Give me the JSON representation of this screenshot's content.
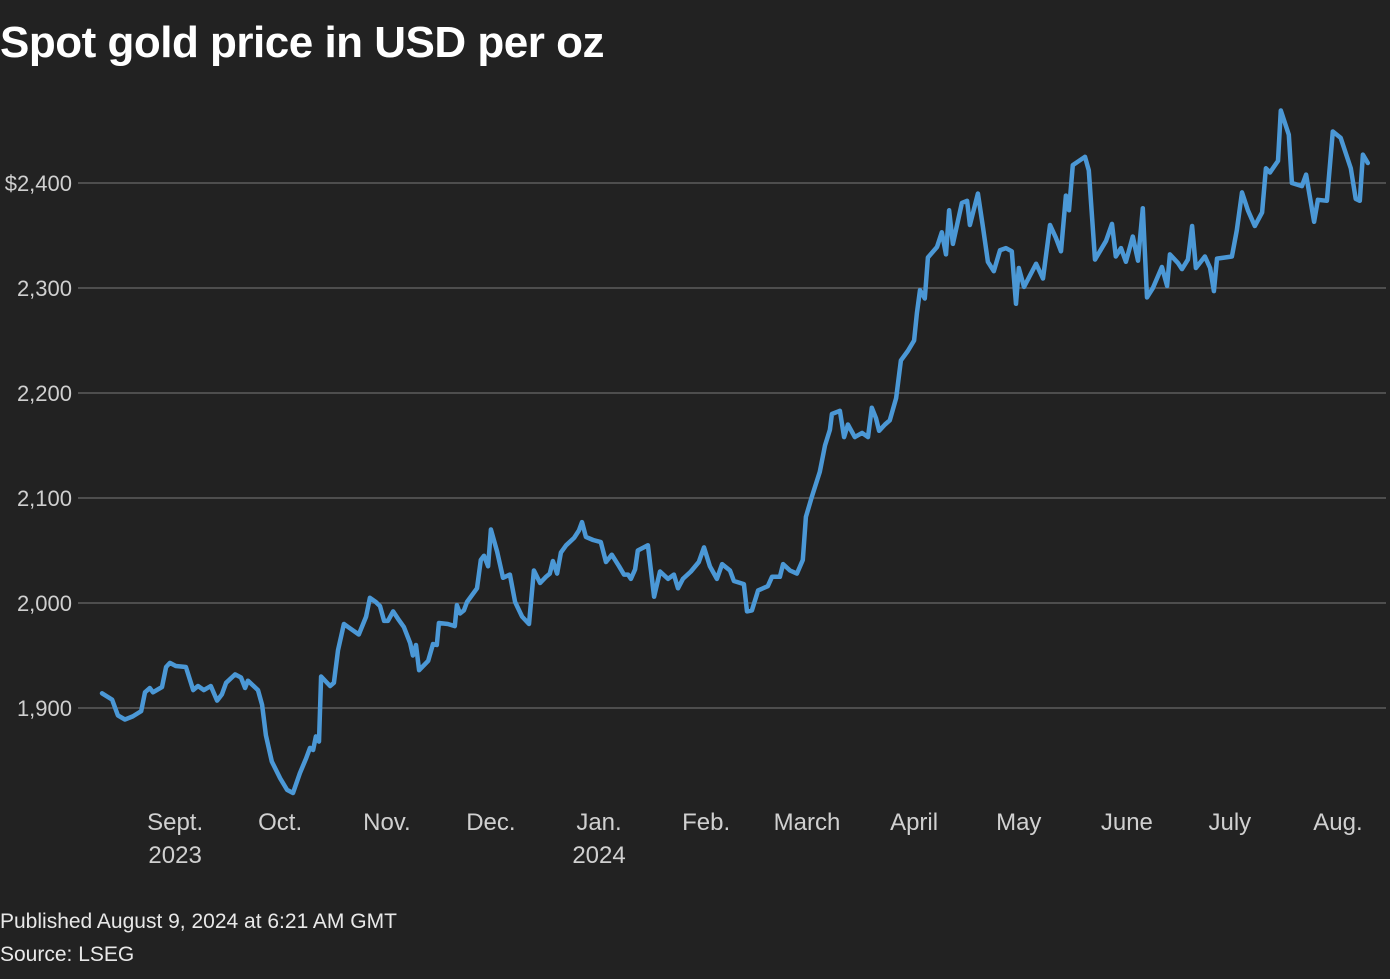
{
  "title": "Spot gold price in USD per oz",
  "footer": {
    "published": "Published August 9, 2024 at 6:21 AM GMT",
    "source": "Source: LSEG"
  },
  "colors": {
    "background": "#222222",
    "line": "#4b98d6",
    "grid": "#6a6a6a",
    "text": "#d0d0d0"
  },
  "chart_data": {
    "type": "line",
    "title": "Spot gold price in USD per oz",
    "xlabel": "",
    "ylabel": "",
    "x_unit": "days since start (approx. Aug 9, 2023)",
    "xlim": [
      0,
      365.2
    ],
    "ylim": [
      1800,
      2480
    ],
    "grid": true,
    "y_ticks": [
      {
        "value": 1900,
        "label": "1,900"
      },
      {
        "value": 2000,
        "label": "2,000"
      },
      {
        "value": 2100,
        "label": "2,100"
      },
      {
        "value": 2200,
        "label": "2,200"
      },
      {
        "value": 2300,
        "label": "2,300"
      },
      {
        "value": 2400,
        "label": "$2,400"
      }
    ],
    "x_ticks": [
      {
        "day": 21.1,
        "label": "Sept.",
        "year": "2023"
      },
      {
        "day": 51.4,
        "label": "Oct."
      },
      {
        "day": 82.2,
        "label": "Nov."
      },
      {
        "day": 112.2,
        "label": "Dec."
      },
      {
        "day": 143.4,
        "label": "Jan.",
        "year": "2024"
      },
      {
        "day": 174.3,
        "label": "Feb."
      },
      {
        "day": 203.4,
        "label": "March"
      },
      {
        "day": 234.3,
        "label": "April"
      },
      {
        "day": 264.5,
        "label": "May"
      },
      {
        "day": 295.7,
        "label": "June"
      },
      {
        "day": 325.4,
        "label": "July"
      },
      {
        "day": 356.6,
        "label": "Aug."
      }
    ],
    "series": [
      {
        "name": "Spot gold",
        "points": [
          [
            0,
            1914
          ],
          [
            2.9,
            1908
          ],
          [
            4.6,
            1893
          ],
          [
            6.6,
            1889
          ],
          [
            8.9,
            1892
          ],
          [
            11.3,
            1897
          ],
          [
            12.4,
            1915
          ],
          [
            13.8,
            1919
          ],
          [
            14.7,
            1915
          ],
          [
            17.3,
            1920
          ],
          [
            18.5,
            1939
          ],
          [
            19.6,
            1943
          ],
          [
            21.3,
            1940
          ],
          [
            24.2,
            1939
          ],
          [
            26.3,
            1917
          ],
          [
            27.7,
            1921
          ],
          [
            29.4,
            1917
          ],
          [
            31.4,
            1921
          ],
          [
            33.2,
            1907
          ],
          [
            34.6,
            1913
          ],
          [
            35.8,
            1924
          ],
          [
            38.4,
            1932
          ],
          [
            40.1,
            1929
          ],
          [
            41.3,
            1919
          ],
          [
            42.1,
            1926
          ],
          [
            45.0,
            1917
          ],
          [
            46.2,
            1903
          ],
          [
            47.3,
            1874
          ],
          [
            49.0,
            1849
          ],
          [
            51.4,
            1833
          ],
          [
            53.4,
            1822
          ],
          [
            55.1,
            1819
          ],
          [
            57.1,
            1838
          ],
          [
            58.9,
            1852
          ],
          [
            60.0,
            1862
          ],
          [
            60.9,
            1860
          ],
          [
            61.7,
            1873
          ],
          [
            62.6,
            1868
          ],
          [
            63.2,
            1930
          ],
          [
            65.8,
            1921
          ],
          [
            66.9,
            1924
          ],
          [
            68.1,
            1955
          ],
          [
            69.8,
            1980
          ],
          [
            71.5,
            1976
          ],
          [
            74.1,
            1970
          ],
          [
            76.2,
            1987
          ],
          [
            77.3,
            2005
          ],
          [
            79.0,
            2001
          ],
          [
            80.2,
            1997
          ],
          [
            81.4,
            1983
          ],
          [
            82.5,
            1983
          ],
          [
            84.0,
            1992
          ],
          [
            85.4,
            1985
          ],
          [
            87.1,
            1977
          ],
          [
            88.9,
            1962
          ],
          [
            89.7,
            1950
          ],
          [
            90.6,
            1960
          ],
          [
            91.5,
            1936
          ],
          [
            94.1,
            1945
          ],
          [
            95.5,
            1961
          ],
          [
            96.6,
            1960
          ],
          [
            97.2,
            1981
          ],
          [
            99.8,
            1980
          ],
          [
            101.8,
            1978
          ],
          [
            102.4,
            1998
          ],
          [
            103.3,
            1990
          ],
          [
            104.4,
            1993
          ],
          [
            105.3,
            2001
          ],
          [
            108.2,
            2014
          ],
          [
            109.3,
            2041
          ],
          [
            110.2,
            2045
          ],
          [
            111.4,
            2035
          ],
          [
            112.2,
            2070
          ],
          [
            114.0,
            2049
          ],
          [
            115.7,
            2024
          ],
          [
            117.7,
            2027
          ],
          [
            119.2,
            2001
          ],
          [
            121.2,
            1987
          ],
          [
            123.2,
            1980
          ],
          [
            124.6,
            2031
          ],
          [
            126.4,
            2019
          ],
          [
            128.1,
            2025
          ],
          [
            129.2,
            2028
          ],
          [
            130.1,
            2040
          ],
          [
            131.3,
            2028
          ],
          [
            132.4,
            2048
          ],
          [
            133.9,
            2055
          ],
          [
            136.2,
            2062
          ],
          [
            137.6,
            2069
          ],
          [
            138.5,
            2077
          ],
          [
            139.6,
            2063
          ],
          [
            141.7,
            2060
          ],
          [
            143.9,
            2058
          ],
          [
            145.4,
            2039
          ],
          [
            147.1,
            2046
          ],
          [
            149.2,
            2035
          ],
          [
            150.6,
            2027
          ],
          [
            151.8,
            2027
          ],
          [
            152.6,
            2023
          ],
          [
            153.8,
            2032
          ],
          [
            154.6,
            2050
          ],
          [
            157.5,
            2055
          ],
          [
            159.3,
            2006
          ],
          [
            161.0,
            2030
          ],
          [
            163.3,
            2023
          ],
          [
            165.0,
            2027
          ],
          [
            166.2,
            2014
          ],
          [
            167.6,
            2023
          ],
          [
            169.9,
            2030
          ],
          [
            172.2,
            2039
          ],
          [
            173.7,
            2053
          ],
          [
            175.4,
            2035
          ],
          [
            177.4,
            2023
          ],
          [
            178.9,
            2037
          ],
          [
            181.2,
            2031
          ],
          [
            182.3,
            2021
          ],
          [
            185.2,
            2018
          ],
          [
            186.1,
            1992
          ],
          [
            187.5,
            1993
          ],
          [
            189.3,
            2012
          ],
          [
            192.1,
            2016
          ],
          [
            193.3,
            2025
          ],
          [
            195.6,
            2025
          ],
          [
            196.5,
            2037
          ],
          [
            198.5,
            2031
          ],
          [
            200.5,
            2028
          ],
          [
            202.2,
            2041
          ],
          [
            203.1,
            2082
          ],
          [
            204.8,
            2101
          ],
          [
            207.1,
            2125
          ],
          [
            208.6,
            2150
          ],
          [
            210.0,
            2165
          ],
          [
            210.6,
            2180
          ],
          [
            212.9,
            2183
          ],
          [
            214.1,
            2158
          ],
          [
            215.2,
            2170
          ],
          [
            217.2,
            2158
          ],
          [
            219.3,
            2162
          ],
          [
            221.0,
            2158
          ],
          [
            222.1,
            2186
          ],
          [
            223.3,
            2176
          ],
          [
            224.2,
            2164
          ],
          [
            225.9,
            2170
          ],
          [
            227.3,
            2174
          ],
          [
            229.1,
            2195
          ],
          [
            230.5,
            2231
          ],
          [
            232.5,
            2240
          ],
          [
            234.3,
            2250
          ],
          [
            235.1,
            2276
          ],
          [
            236.0,
            2298
          ],
          [
            237.4,
            2290
          ],
          [
            238.3,
            2329
          ],
          [
            240.9,
            2339
          ],
          [
            242.3,
            2353
          ],
          [
            243.5,
            2332
          ],
          [
            244.4,
            2374
          ],
          [
            245.5,
            2342
          ],
          [
            248.1,
            2381
          ],
          [
            249.6,
            2383
          ],
          [
            250.4,
            2360
          ],
          [
            252.7,
            2390
          ],
          [
            254.2,
            2357
          ],
          [
            255.6,
            2325
          ],
          [
            257.3,
            2316
          ],
          [
            259.1,
            2336
          ],
          [
            260.8,
            2338
          ],
          [
            262.5,
            2335
          ],
          [
            263.7,
            2285
          ],
          [
            264.5,
            2319
          ],
          [
            266.0,
            2301
          ],
          [
            269.5,
            2323
          ],
          [
            271.5,
            2309
          ],
          [
            273.5,
            2360
          ],
          [
            275.2,
            2348
          ],
          [
            276.7,
            2335
          ],
          [
            278.1,
            2388
          ],
          [
            279.0,
            2374
          ],
          [
            280.1,
            2417
          ],
          [
            283.6,
            2425
          ],
          [
            284.7,
            2412
          ],
          [
            286.5,
            2327
          ],
          [
            289.7,
            2345
          ],
          [
            291.4,
            2361
          ],
          [
            292.5,
            2330
          ],
          [
            294.0,
            2338
          ],
          [
            295.4,
            2325
          ],
          [
            297.4,
            2349
          ],
          [
            298.9,
            2326
          ],
          [
            300.3,
            2376
          ],
          [
            301.5,
            2291
          ],
          [
            303.2,
            2300
          ],
          [
            305.8,
            2320
          ],
          [
            307.3,
            2302
          ],
          [
            308.1,
            2332
          ],
          [
            310.4,
            2324
          ],
          [
            311.6,
            2318
          ],
          [
            313.3,
            2327
          ],
          [
            314.5,
            2359
          ],
          [
            315.6,
            2319
          ],
          [
            318.2,
            2330
          ],
          [
            319.7,
            2319
          ],
          [
            320.8,
            2297
          ],
          [
            321.7,
            2328
          ],
          [
            324.0,
            2329
          ],
          [
            326.0,
            2330
          ],
          [
            327.4,
            2355
          ],
          [
            328.9,
            2391
          ],
          [
            330.6,
            2374
          ],
          [
            332.6,
            2359
          ],
          [
            334.7,
            2372
          ],
          [
            335.8,
            2414
          ],
          [
            337.0,
            2410
          ],
          [
            339.3,
            2421
          ],
          [
            340.1,
            2469
          ],
          [
            342.4,
            2446
          ],
          [
            343.3,
            2400
          ],
          [
            346.2,
            2397
          ],
          [
            347.4,
            2408
          ],
          [
            349.7,
            2363
          ],
          [
            350.8,
            2384
          ],
          [
            353.4,
            2383
          ],
          [
            355.1,
            2449
          ],
          [
            357.4,
            2443
          ],
          [
            360.3,
            2414
          ],
          [
            361.7,
            2385
          ],
          [
            362.9,
            2383
          ],
          [
            363.8,
            2427
          ],
          [
            365.2,
            2419
          ]
        ]
      }
    ]
  }
}
